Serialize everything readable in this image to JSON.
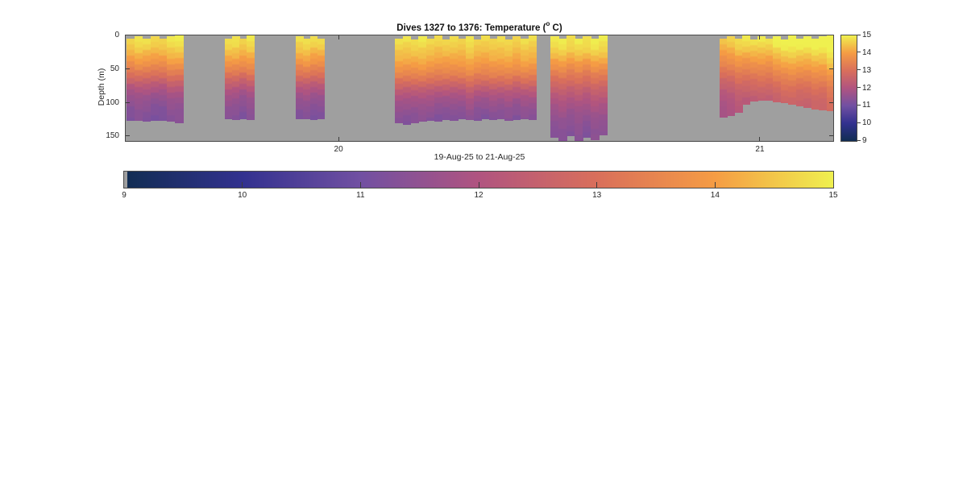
{
  "figure": {
    "title_prefix": "Dives 1327 to 1376: Temperature (",
    "title_sup": "o",
    "title_suffix": " C)",
    "xlabel": "19-Aug-25 to 21-Aug-25",
    "ylabel": "Depth (m)"
  },
  "chart_data": {
    "type": "heatmap",
    "title": "Dives 1327 to 1376: Temperature (° C)",
    "xlabel": "19-Aug-25 to 21-Aug-25",
    "ylabel": "Depth (m)",
    "x_axis_days": {
      "min": 19.493,
      "max": 21.176,
      "ticks": [
        20,
        21
      ],
      "tick_labels": [
        "20",
        "21"
      ]
    },
    "depth_axis_m": {
      "min": 0,
      "max": 158.4,
      "ticks": [
        0,
        50,
        100,
        150
      ]
    },
    "colorbar": {
      "min": 9,
      "max": 15,
      "ticks": [
        9,
        10,
        11,
        12,
        13,
        14,
        15
      ]
    },
    "colormap": {
      "name": "thermal",
      "nan_color": "#9f9f9f",
      "stops": [
        [
          9,
          "#112d52"
        ],
        [
          10,
          "#32318f"
        ],
        [
          11,
          "#7150a2"
        ],
        [
          12,
          "#b05480"
        ],
        [
          13,
          "#d96f5b"
        ],
        [
          14,
          "#f59c44"
        ],
        [
          15,
          "#eff04f"
        ]
      ]
    },
    "dive_groups": [
      {
        "start_day": 19.496,
        "end_day": 19.631,
        "surface_gaps_m": [
          5,
          2,
          5,
          2,
          5,
          2,
          1
        ],
        "bottom_depths_m": [
          127,
          127,
          128,
          127,
          127,
          128,
          131
        ],
        "temp_trend_c": 0,
        "profile_m_c": [
          [
            0,
            14.9
          ],
          [
            18,
            14.6
          ],
          [
            30,
            14.2
          ],
          [
            42,
            13.8
          ],
          [
            54,
            13.3
          ],
          [
            66,
            12.7
          ],
          [
            78,
            12.1
          ],
          [
            90,
            11.7
          ],
          [
            108,
            11.4
          ],
          [
            130,
            11.2
          ]
        ]
      },
      {
        "start_day": 19.73,
        "end_day": 19.799,
        "surface_gaps_m": [
          5,
          2,
          5,
          1
        ],
        "bottom_depths_m": [
          125,
          126,
          125,
          126
        ],
        "temp_trend_c": 0,
        "profile_m_c": [
          [
            0,
            14.9
          ],
          [
            18,
            14.6
          ],
          [
            30,
            14.2
          ],
          [
            42,
            13.8
          ],
          [
            54,
            13.3
          ],
          [
            66,
            12.7
          ],
          [
            78,
            12.1
          ],
          [
            90,
            11.7
          ],
          [
            108,
            11.4
          ],
          [
            130,
            11.2
          ]
        ]
      },
      {
        "start_day": 19.899,
        "end_day": 19.966,
        "surface_gaps_m": [
          2,
          5,
          2,
          5
        ],
        "bottom_depths_m": [
          125,
          125,
          126,
          125
        ],
        "temp_trend_c": 0,
        "profile_m_c": [
          [
            0,
            14.9
          ],
          [
            18,
            14.6
          ],
          [
            30,
            14.2
          ],
          [
            42,
            13.8
          ],
          [
            54,
            13.3
          ],
          [
            66,
            12.7
          ],
          [
            78,
            12.1
          ],
          [
            90,
            11.7
          ],
          [
            108,
            11.4
          ],
          [
            130,
            11.2
          ]
        ]
      },
      {
        "start_day": 20.134,
        "end_day": 20.469,
        "surface_gaps_m": [
          5,
          2,
          6,
          2,
          5,
          1,
          6,
          2,
          5,
          2,
          6,
          1,
          5,
          2,
          6,
          2,
          5,
          1
        ],
        "bottom_depths_m": [
          131,
          133,
          131,
          129,
          127,
          128,
          126,
          127,
          125,
          126,
          127,
          125,
          126,
          125,
          127,
          126,
          125,
          126
        ],
        "temp_trend_c": 0,
        "profile_m_c": [
          [
            0,
            14.9
          ],
          [
            18,
            14.6
          ],
          [
            32,
            14.3
          ],
          [
            46,
            13.9
          ],
          [
            60,
            13.4
          ],
          [
            72,
            12.8
          ],
          [
            84,
            12.2
          ],
          [
            96,
            11.8
          ],
          [
            112,
            11.5
          ],
          [
            134,
            11.2
          ]
        ]
      },
      {
        "start_day": 20.503,
        "end_day": 20.637,
        "surface_gaps_m": [
          2,
          5,
          1,
          5,
          2,
          5,
          1
        ],
        "bottom_depths_m": [
          153,
          157,
          150,
          157,
          152,
          156,
          149
        ],
        "temp_trend_c": 0,
        "profile_m_c": [
          [
            0,
            15.0
          ],
          [
            22,
            14.7
          ],
          [
            38,
            14.1
          ],
          [
            54,
            13.5
          ],
          [
            70,
            12.9
          ],
          [
            84,
            12.4
          ],
          [
            98,
            12.0
          ],
          [
            120,
            11.6
          ],
          [
            140,
            11.4
          ],
          [
            158,
            11.3
          ]
        ]
      },
      {
        "start_day": 20.904,
        "end_day": 21.176,
        "surface_gaps_m": [
          5,
          2,
          5,
          1,
          6,
          2,
          5,
          2,
          6,
          1,
          5,
          2,
          5,
          2,
          1
        ],
        "bottom_depths_m": [
          122,
          120,
          115,
          104,
          99,
          97,
          98,
          100,
          101,
          103,
          106,
          108,
          111,
          112,
          113
        ],
        "temp_trend_c": 0.8,
        "profile_m_c": [
          [
            0,
            14.8
          ],
          [
            18,
            14.4
          ],
          [
            36,
            13.8
          ],
          [
            54,
            13.2
          ],
          [
            70,
            12.7
          ],
          [
            84,
            12.3
          ],
          [
            98,
            12.05
          ],
          [
            114,
            11.9
          ],
          [
            126,
            11.85
          ]
        ]
      }
    ]
  }
}
